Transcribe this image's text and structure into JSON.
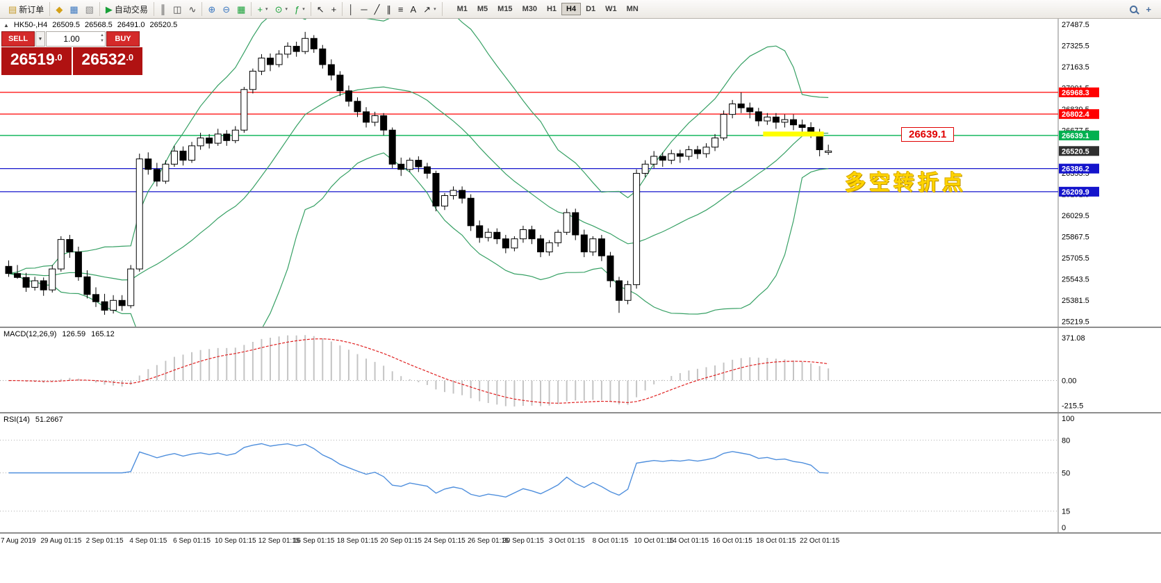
{
  "toolbar": {
    "groups": [
      {
        "items": [
          {
            "name": "new-order-button",
            "glyph": "▤",
            "glyph_color": "#c59a2a",
            "label": "新订单"
          }
        ]
      },
      {
        "items": [
          {
            "name": "market-watch-button",
            "glyph": "◆",
            "glyph_color": "#d4a017"
          },
          {
            "name": "data-window-button",
            "glyph": "▦",
            "glyph_color": "#3c78c0"
          },
          {
            "name": "navigator-button",
            "glyph": "▧",
            "glyph_color": "#888888"
          }
        ]
      },
      {
        "items": [
          {
            "name": "autotrade-button",
            "glyph": "▶",
            "glyph_color": "#18a038",
            "label": "自动交易"
          }
        ]
      },
      {
        "items": [
          {
            "name": "bar-chart-button",
            "glyph": "║",
            "glyph_color": "#444444"
          },
          {
            "name": "candlestick-chart-button",
            "glyph": "◫",
            "glyph_color": "#444444"
          },
          {
            "name": "line-chart-button",
            "glyph": "∿",
            "glyph_color": "#444444"
          }
        ]
      },
      {
        "items": [
          {
            "name": "zoom-in-button",
            "glyph": "⊕",
            "glyph_color": "#3c78c0"
          },
          {
            "name": "zoom-out-button",
            "glyph": "⊖",
            "glyph_color": "#3c78c0"
          },
          {
            "name": "tile-windows-button",
            "glyph": "▦",
            "glyph_color": "#18a038"
          }
        ]
      },
      {
        "items": [
          {
            "name": "new-chart-button",
            "glyph": "+",
            "glyph_color": "#18a038",
            "caret": true
          },
          {
            "name": "profiles-button",
            "glyph": "⊙",
            "glyph_color": "#18a038",
            "caret": true
          },
          {
            "name": "indicators-button",
            "glyph": "ƒ",
            "glyph_color": "#18a038",
            "caret": true
          }
        ]
      },
      {
        "items": [
          {
            "name": "cursor-button",
            "glyph": "↖",
            "glyph_color": "#222222"
          },
          {
            "name": "crosshair-button",
            "glyph": "+",
            "glyph_color": "#222222"
          }
        ]
      },
      {
        "items": [
          {
            "name": "vertical-line-button",
            "glyph": "│",
            "glyph_color": "#222222"
          },
          {
            "name": "horizontal-line-button",
            "glyph": "─",
            "glyph_color": "#222222"
          },
          {
            "name": "trendline-button",
            "glyph": "╱",
            "glyph_color": "#222222"
          },
          {
            "name": "channel-button",
            "glyph": "∥",
            "glyph_color": "#222222"
          },
          {
            "name": "fibonacci-button",
            "glyph": "≡",
            "glyph_color": "#222222"
          },
          {
            "name": "text-button",
            "glyph": "A",
            "glyph_color": "#222222"
          },
          {
            "name": "arrow-tools-button",
            "glyph": "↗",
            "glyph_color": "#222222",
            "caret": true
          }
        ]
      }
    ],
    "timeframes": [
      "M1",
      "M5",
      "M15",
      "M30",
      "H1",
      "H4",
      "D1",
      "W1",
      "MN"
    ],
    "active_timeframe": "H4"
  },
  "quote_header": {
    "arrow": "▲",
    "symbol": "HK50-,H4",
    "open": "26509.5",
    "high": "26568.5",
    "low": "26491.0",
    "close": "26520.5"
  },
  "order_panel": {
    "sell_label": "SELL",
    "buy_label": "BUY",
    "caret": "▼",
    "spin_up": "▲",
    "spin_down": "▼",
    "volume": "1.00",
    "sell_price_main": "26519",
    "sell_price_dec": ".0",
    "buy_price_main": "26532",
    "buy_price_dec": ".0"
  },
  "annotations": {
    "price_label": "26639.1",
    "note": "多空转折点"
  },
  "chart_data": {
    "type": "candlestick",
    "symbol": "HK50-",
    "period": "H4",
    "main": {
      "price_axis": {
        "min": 25180,
        "max": 27530,
        "tick_labels": [
          "27487.5",
          "27325.5",
          "27163.5",
          "27001.5",
          "26839.5",
          "26677.5",
          "26515.5",
          "26353.5",
          "26191.5",
          "26029.5",
          "25867.5",
          "25705.5",
          "25543.5",
          "25381.5",
          "25219.5"
        ]
      },
      "hlines": [
        {
          "price": 26968.3,
          "label": "26968.3",
          "color": "#ff0000"
        },
        {
          "price": 26802.4,
          "label": "26802.4",
          "color": "#ff0000"
        },
        {
          "price": 26639.1,
          "label": "26639.1",
          "color": "#00b050"
        },
        {
          "price": 26386.2,
          "label": "26386.2",
          "color": "#1414cc"
        },
        {
          "price": 26209.9,
          "label": "26209.9",
          "color": "#1414cc"
        }
      ],
      "current_price": {
        "value": 26520.5,
        "label": "26520.5",
        "badge_color": "#2f2f2f"
      },
      "yellow_zone": {
        "price": 26650,
        "from": 87,
        "to": 93,
        "color": "#ffff00"
      },
      "bollinger": {
        "period": 20,
        "deviation": 2,
        "color": "#36a064"
      },
      "candles": [
        [
          25640,
          25685,
          25560,
          25585
        ],
        [
          25585,
          25650,
          25545,
          25555
        ],
        [
          25555,
          25590,
          25445,
          25480
        ],
        [
          25480,
          25560,
          25455,
          25530
        ],
        [
          25530,
          25555,
          25415,
          25460
        ],
        [
          25460,
          25650,
          25440,
          25620
        ],
        [
          25620,
          25870,
          25600,
          25845
        ],
        [
          25845,
          25880,
          25705,
          25750
        ],
        [
          25750,
          25790,
          25530,
          25560
        ],
        [
          25560,
          25610,
          25395,
          25425
        ],
        [
          25425,
          25480,
          25330,
          25370
        ],
        [
          25370,
          25430,
          25270,
          25305
        ],
        [
          25305,
          25420,
          25280,
          25380
        ],
        [
          25380,
          25420,
          25300,
          25340
        ],
        [
          25340,
          25650,
          25320,
          25620
        ],
        [
          25620,
          26500,
          25600,
          26460
        ],
        [
          26460,
          26510,
          26340,
          26380
        ],
        [
          26380,
          26430,
          26250,
          26290
        ],
        [
          26290,
          26450,
          26270,
          26420
        ],
        [
          26420,
          26560,
          26400,
          26520
        ],
        [
          26520,
          26555,
          26410,
          26450
        ],
        [
          26450,
          26590,
          26430,
          26560
        ],
        [
          26560,
          26660,
          26530,
          26620
        ],
        [
          26620,
          26650,
          26540,
          26580
        ],
        [
          26580,
          26690,
          26560,
          26650
        ],
        [
          26650,
          26680,
          26560,
          26600
        ],
        [
          26600,
          26710,
          26580,
          26680
        ],
        [
          26680,
          27010,
          26660,
          26990
        ],
        [
          26990,
          27150,
          26960,
          27130
        ],
        [
          27130,
          27260,
          27100,
          27230
        ],
        [
          27230,
          27265,
          27130,
          27180
        ],
        [
          27180,
          27290,
          27160,
          27260
        ],
        [
          27260,
          27350,
          27230,
          27320
        ],
        [
          27320,
          27355,
          27240,
          27280
        ],
        [
          27280,
          27430,
          27260,
          27380
        ],
        [
          27380,
          27405,
          27270,
          27300
        ],
        [
          27300,
          27330,
          27150,
          27180
        ],
        [
          27180,
          27220,
          27060,
          27100
        ],
        [
          27100,
          27130,
          26940,
          26980
        ],
        [
          26980,
          27020,
          26860,
          26900
        ],
        [
          26900,
          26930,
          26780,
          26820
        ],
        [
          26820,
          26855,
          26700,
          26740
        ],
        [
          26740,
          26820,
          26710,
          26790
        ],
        [
          26790,
          26810,
          26640,
          26680
        ],
        [
          26680,
          26700,
          26390,
          26420
        ],
        [
          26420,
          26470,
          26330,
          26380
        ],
        [
          26380,
          26470,
          26360,
          26450
        ],
        [
          26450,
          26480,
          26360,
          26400
        ],
        [
          26400,
          26430,
          26310,
          26350
        ],
        [
          26350,
          26370,
          26060,
          26100
        ],
        [
          26100,
          26200,
          26070,
          26180
        ],
        [
          26180,
          26250,
          26150,
          26220
        ],
        [
          26220,
          26250,
          26120,
          26160
        ],
        [
          26160,
          26190,
          25910,
          25950
        ],
        [
          25950,
          25990,
          25820,
          25860
        ],
        [
          25860,
          25930,
          25830,
          25900
        ],
        [
          25900,
          25930,
          25810,
          25850
        ],
        [
          25850,
          25880,
          25740,
          25780
        ],
        [
          25780,
          25870,
          25755,
          25850
        ],
        [
          25850,
          25950,
          25820,
          25920
        ],
        [
          25920,
          25950,
          25810,
          25850
        ],
        [
          25850,
          25880,
          25710,
          25750
        ],
        [
          25750,
          25840,
          25720,
          25820
        ],
        [
          25820,
          25920,
          25790,
          25900
        ],
        [
          25900,
          26080,
          25880,
          26050
        ],
        [
          26050,
          26080,
          25840,
          25880
        ],
        [
          25880,
          25920,
          25710,
          25750
        ],
        [
          25750,
          25870,
          25720,
          25850
        ],
        [
          25850,
          25880,
          25680,
          25720
        ],
        [
          25720,
          25750,
          25480,
          25530
        ],
        [
          25530,
          25560,
          25285,
          25380
        ],
        [
          25380,
          25530,
          25350,
          25500
        ],
        [
          25500,
          26380,
          25470,
          26350
        ],
        [
          26350,
          26450,
          26320,
          26420
        ],
        [
          26420,
          26520,
          26390,
          26480
        ],
        [
          26480,
          26510,
          26400,
          26450
        ],
        [
          26450,
          26530,
          26420,
          26500
        ],
        [
          26500,
          26530,
          26430,
          26480
        ],
        [
          26480,
          26560,
          26450,
          26530
        ],
        [
          26530,
          26560,
          26460,
          26500
        ],
        [
          26500,
          26580,
          26470,
          26550
        ],
        [
          26550,
          26650,
          26520,
          26620
        ],
        [
          26620,
          26830,
          26600,
          26800
        ],
        [
          26800,
          26910,
          26770,
          26880
        ],
        [
          26880,
          26968,
          26810,
          26850
        ],
        [
          26850,
          26890,
          26770,
          26820
        ],
        [
          26820,
          26850,
          26710,
          26750
        ],
        [
          26750,
          26810,
          26720,
          26780
        ],
        [
          26780,
          26810,
          26690,
          26740
        ],
        [
          26740,
          26800,
          26700,
          26760
        ],
        [
          26760,
          26800,
          26680,
          26720
        ],
        [
          26720,
          26760,
          26650,
          26700
        ],
        [
          26700,
          26740,
          26620,
          26660
        ],
        [
          26660,
          26690,
          26480,
          26530
        ],
        [
          26509.5,
          26568.5,
          26491.0,
          26520.5
        ]
      ]
    },
    "indicators": {
      "macd": {
        "label": "MACD(12,26,9)",
        "main_value": "126.59",
        "signal_value": "165.12",
        "params": {
          "fast": 12,
          "slow": 26,
          "signal": 9
        },
        "axis_labels": [
          "371.08",
          "0.00",
          "-215.5"
        ],
        "bar_color": "#c4c4c4",
        "signal_color": "#e02020"
      },
      "rsi": {
        "label": "RSI(14)",
        "value": "51.2667",
        "period": 14,
        "levels": [
          80,
          50,
          15
        ],
        "axis_labels": [
          "100",
          "80",
          "50",
          "15",
          "0"
        ],
        "line_color": "#4f8fdd"
      }
    },
    "time_axis": {
      "labels": [
        {
          "text": "7 Aug 2019",
          "index": 1
        },
        {
          "text": "29 Aug 01:15",
          "index": 6
        },
        {
          "text": "2 Sep 01:15",
          "index": 11
        },
        {
          "text": "4 Sep 01:15",
          "index": 16
        },
        {
          "text": "6 Sep 01:15",
          "index": 21
        },
        {
          "text": "10 Sep 01:15",
          "index": 26
        },
        {
          "text": "12 Sep 01:15",
          "index": 31
        },
        {
          "text": "16 Sep 01:15",
          "index": 35
        },
        {
          "text": "18 Sep 01:15",
          "index": 40
        },
        {
          "text": "20 Sep 01:15",
          "index": 45
        },
        {
          "text": "24 Sep 01:15",
          "index": 50
        },
        {
          "text": "26 Sep 01:15",
          "index": 55
        },
        {
          "text": "30 Sep 01:15",
          "index": 59
        },
        {
          "text": "3 Oct 01:15",
          "index": 64
        },
        {
          "text": "8 Oct 01:15",
          "index": 69
        },
        {
          "text": "10 Oct 01:15",
          "index": 74
        },
        {
          "text": "14 Oct 01:15",
          "index": 78
        },
        {
          "text": "16 Oct 01:15",
          "index": 83
        },
        {
          "text": "18 Oct 01:15",
          "index": 88
        },
        {
          "text": "22 Oct 01:15",
          "index": 93
        }
      ]
    }
  }
}
